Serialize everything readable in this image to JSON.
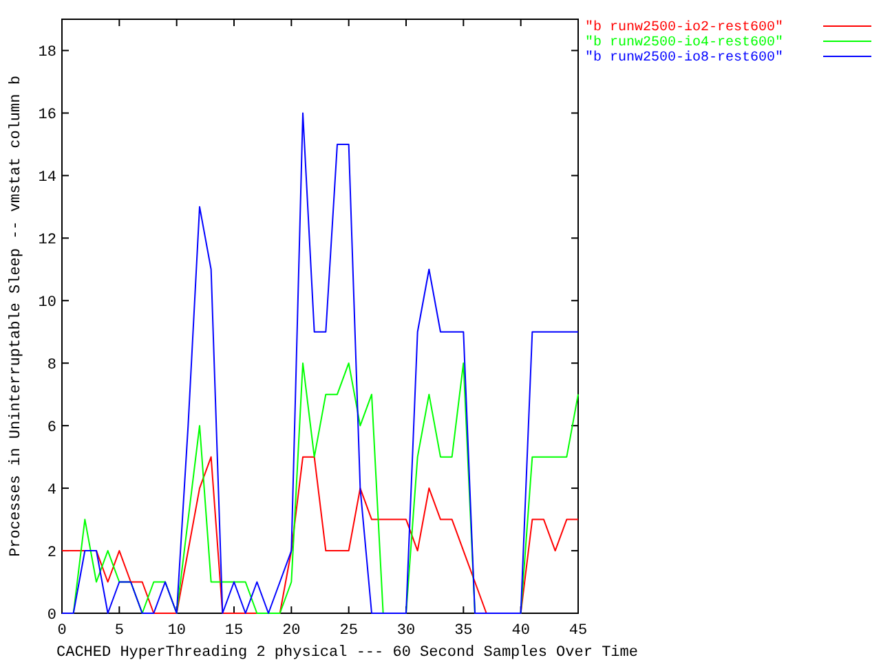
{
  "chart_data": {
    "type": "line",
    "xlabel": "CACHED HyperThreading 2 physical --- 60 Second Samples Over Time",
    "ylabel": "Processes in Uninterruptable Sleep -- vmstat column b",
    "x": [
      0,
      1,
      2,
      3,
      4,
      5,
      6,
      7,
      8,
      9,
      10,
      11,
      12,
      13,
      14,
      15,
      16,
      17,
      18,
      19,
      20,
      21,
      22,
      23,
      24,
      25,
      26,
      27,
      28,
      29,
      30,
      31,
      32,
      33,
      34,
      35,
      36,
      37,
      38,
      39,
      40,
      41,
      42,
      43,
      44,
      45
    ],
    "series": [
      {
        "name": "\"b runw2500-io2-rest600\"",
        "color": "#ff0000",
        "values": [
          2,
          2,
          2,
          2,
          1,
          2,
          1,
          1,
          0,
          0,
          0,
          2,
          4,
          5,
          0,
          0,
          0,
          0,
          0,
          0,
          2,
          5,
          5,
          2,
          2,
          2,
          4,
          3,
          3,
          3,
          3,
          2,
          4,
          3,
          3,
          2,
          1,
          0,
          0,
          0,
          0,
          3,
          3,
          2,
          3,
          3
        ]
      },
      {
        "name": "\"b runw2500-io4-rest600\"",
        "color": "#00ff00",
        "values": [
          0,
          0,
          3,
          1,
          2,
          1,
          1,
          0,
          1,
          1,
          0,
          3,
          6,
          1,
          1,
          1,
          1,
          0,
          0,
          0,
          1,
          8,
          5,
          7,
          7,
          8,
          6,
          7,
          0,
          0,
          0,
          5,
          7,
          5,
          5,
          8,
          0,
          0,
          0,
          0,
          0,
          5,
          5,
          5,
          5,
          7
        ]
      },
      {
        "name": "\"b runw2500-io8-rest600\"",
        "color": "#0000ff",
        "values": [
          0,
          0,
          2,
          2,
          0,
          1,
          1,
          0,
          0,
          1,
          0,
          6,
          13,
          11,
          0,
          1,
          0,
          1,
          0,
          1,
          2,
          16,
          9,
          9,
          15,
          15,
          4,
          0,
          0,
          0,
          0,
          9,
          11,
          9,
          9,
          9,
          0,
          0,
          0,
          0,
          0,
          9,
          9,
          9,
          9,
          9
        ]
      }
    ],
    "xlim": [
      0,
      45
    ],
    "xticks": [
      0,
      5,
      10,
      15,
      20,
      25,
      30,
      35,
      40,
      45
    ],
    "ylim": [
      0,
      19
    ],
    "yticks": [
      0,
      2,
      4,
      6,
      8,
      10,
      12,
      14,
      16,
      18
    ],
    "legend": "top right",
    "marker": "none",
    "line_style": "solid"
  }
}
